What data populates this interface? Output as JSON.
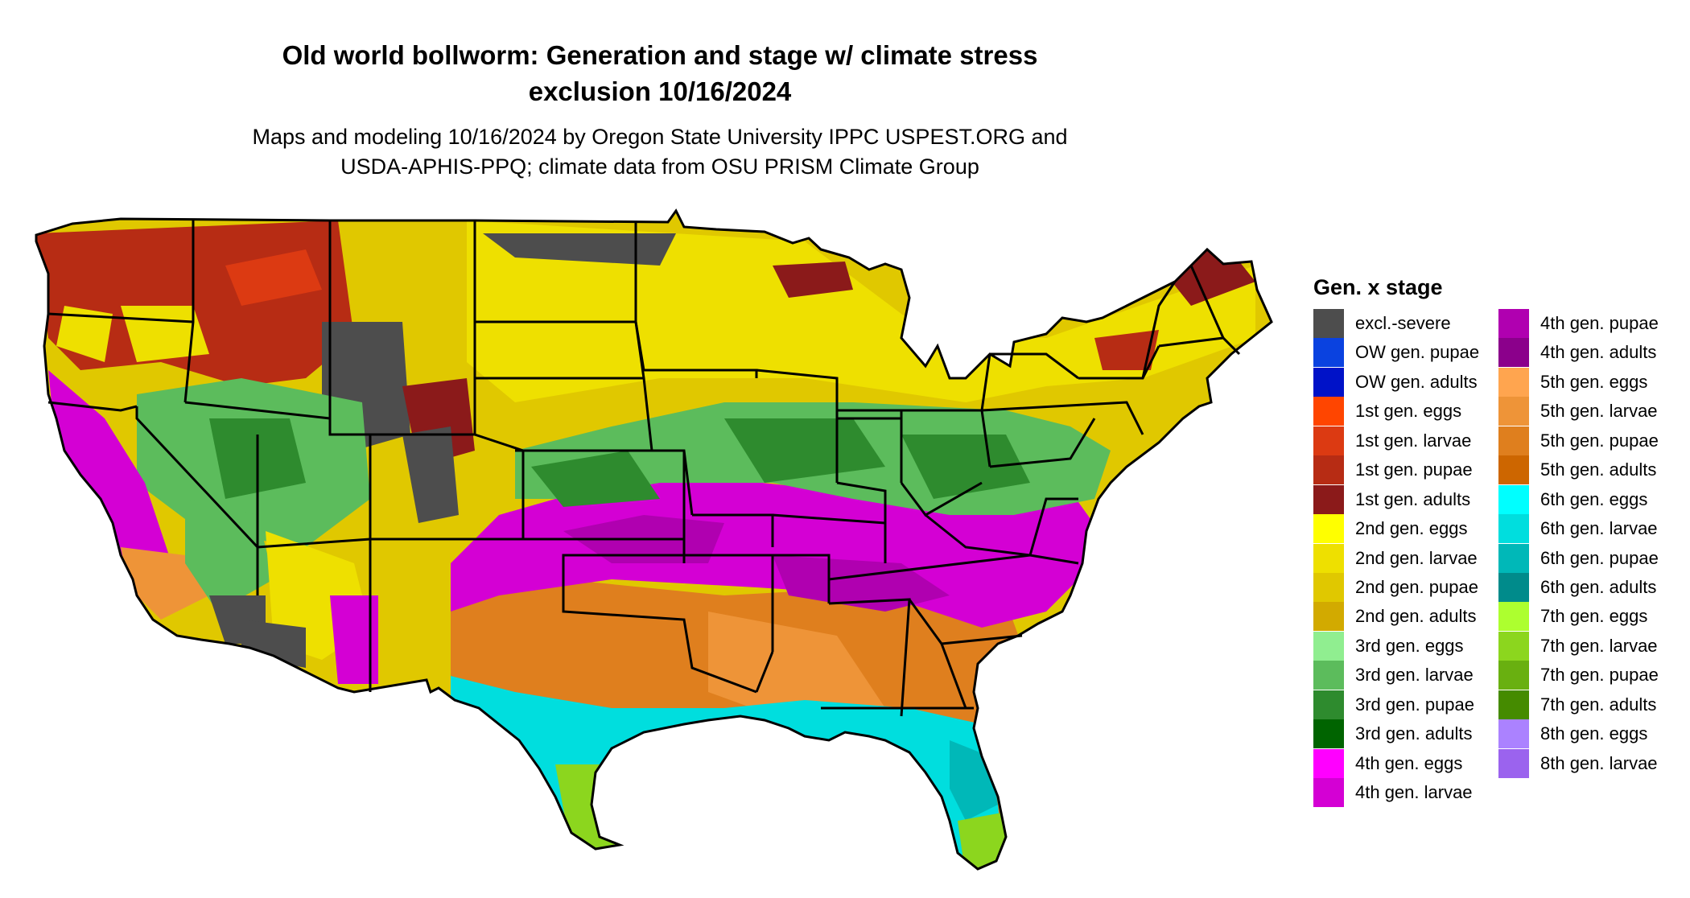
{
  "title_line1": "Old world bollworm: Generation and stage w/ climate stress",
  "title_line2": "exclusion 10/16/2024",
  "subtitle_line1": "Maps and modeling 10/16/2024 by Oregon State University IPPC USPEST.ORG and",
  "subtitle_line2": "USDA-APHIS-PPQ; climate data from OSU PRISM Climate Group",
  "legend": {
    "title": "Gen. x stage",
    "items": [
      {
        "label": "excl.-severe",
        "color": "#4d4d4d"
      },
      {
        "label": "OW gen. pupae",
        "color": "#0a42e0"
      },
      {
        "label": "OW gen. adults",
        "color": "#0012c8"
      },
      {
        "label": "1st gen. eggs",
        "color": "#ff4500"
      },
      {
        "label": "1st gen. larvae",
        "color": "#dc3a12"
      },
      {
        "label": "1st gen. pupae",
        "color": "#b72c14"
      },
      {
        "label": "1st gen. adults",
        "color": "#8b1a1a"
      },
      {
        "label": "2nd gen. eggs",
        "color": "#ffff00"
      },
      {
        "label": "2nd gen. larvae",
        "color": "#eee000"
      },
      {
        "label": "2nd gen. pupae",
        "color": "#e0c800"
      },
      {
        "label": "2nd gen. adults",
        "color": "#d2aa00"
      },
      {
        "label": "3rd gen. eggs",
        "color": "#90ee90"
      },
      {
        "label": "3rd gen. larvae",
        "color": "#5cbc5c"
      },
      {
        "label": "3rd gen. pupae",
        "color": "#2e8b2e"
      },
      {
        "label": "3rd gen. adults",
        "color": "#006400"
      },
      {
        "label": "4th gen. eggs",
        "color": "#ff00ff"
      },
      {
        "label": "4th gen. larvae",
        "color": "#d400d4"
      },
      {
        "label": "4th gen. pupae",
        "color": "#b000b0"
      },
      {
        "label": "4th gen. adults",
        "color": "#8b008b"
      },
      {
        "label": "5th gen. eggs",
        "color": "#ffa54f"
      },
      {
        "label": "5th gen. larvae",
        "color": "#ee9438"
      },
      {
        "label": "5th gen. pupae",
        "color": "#df7f1e"
      },
      {
        "label": "5th gen. adults",
        "color": "#cd6600"
      },
      {
        "label": "6th gen. eggs",
        "color": "#00ffff"
      },
      {
        "label": "6th gen. larvae",
        "color": "#00dede"
      },
      {
        "label": "6th gen. pupae",
        "color": "#00b8b8"
      },
      {
        "label": "6th gen. adults",
        "color": "#008b8b"
      },
      {
        "label": "7th gen. eggs",
        "color": "#adff2f"
      },
      {
        "label": "7th gen. larvae",
        "color": "#8cd61e"
      },
      {
        "label": "7th gen. pupae",
        "color": "#69b010"
      },
      {
        "label": "7th gen. adults",
        "color": "#458b00"
      },
      {
        "label": "8th gen. eggs",
        "color": "#ab82ff"
      },
      {
        "label": "8th gen. larvae",
        "color": "#9b63ee"
      }
    ]
  }
}
